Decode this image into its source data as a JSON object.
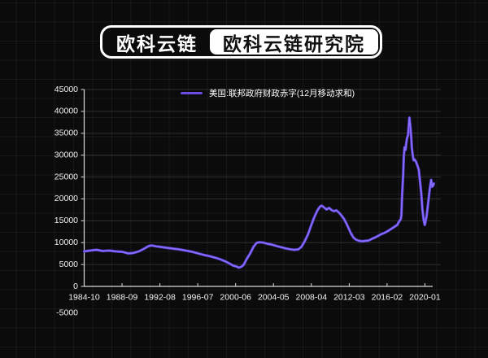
{
  "header": {
    "badge_left": "欧科云链",
    "badge_right": "欧科云链研究院"
  },
  "colors": {
    "background": "#0b0b0b",
    "line": "#6b4be0",
    "line_core": "#8a6eff",
    "line_under": "#5b3fd6",
    "axis": "#d9d9d9",
    "gridline": "#2f2f2f",
    "label": "#f2f2f2",
    "badge_border": "#ffffff"
  },
  "chart_data": {
    "type": "line",
    "title": "",
    "legend": "美国:联邦政府财政赤字(12月移动求和)",
    "legend_position": "top-center",
    "grid": true,
    "ylim": [
      -5000,
      45000
    ],
    "y_ticks": [
      45000,
      40000,
      35000,
      30000,
      25000,
      20000,
      15000,
      10000,
      5000,
      0,
      -5000
    ],
    "x_tick_labels": [
      "1984-10",
      "1988-09",
      "1992-08",
      "1996-07",
      "2000-06",
      "2004-05",
      "2008-04",
      "2012-03",
      "2016-02",
      "2020-01"
    ],
    "series": [
      {
        "name": "美国:联邦政府财政赤字(12月移动求和)",
        "points_pos_value": [
          [
            0.0,
            8000
          ],
          [
            0.016,
            8180
          ],
          [
            0.035,
            8360
          ],
          [
            0.053,
            8090
          ],
          [
            0.072,
            8180
          ],
          [
            0.091,
            7990
          ],
          [
            0.109,
            7900
          ],
          [
            0.126,
            7530
          ],
          [
            0.14,
            7620
          ],
          [
            0.156,
            7990
          ],
          [
            0.172,
            8640
          ],
          [
            0.184,
            9200
          ],
          [
            0.193,
            9350
          ],
          [
            0.205,
            9160
          ],
          [
            0.219,
            9010
          ],
          [
            0.235,
            8830
          ],
          [
            0.253,
            8640
          ],
          [
            0.272,
            8460
          ],
          [
            0.291,
            8180
          ],
          [
            0.309,
            7900
          ],
          [
            0.326,
            7530
          ],
          [
            0.344,
            7160
          ],
          [
            0.36,
            6880
          ],
          [
            0.377,
            6510
          ],
          [
            0.391,
            6140
          ],
          [
            0.405,
            5670
          ],
          [
            0.416,
            5210
          ],
          [
            0.426,
            4740
          ],
          [
            0.435,
            4560
          ],
          [
            0.442,
            4280
          ],
          [
            0.449,
            4460
          ],
          [
            0.456,
            4930
          ],
          [
            0.465,
            6320
          ],
          [
            0.474,
            7430
          ],
          [
            0.484,
            9010
          ],
          [
            0.493,
            9940
          ],
          [
            0.502,
            10090
          ],
          [
            0.512,
            10000
          ],
          [
            0.523,
            9760
          ],
          [
            0.535,
            9570
          ],
          [
            0.547,
            9290
          ],
          [
            0.56,
            9010
          ],
          [
            0.574,
            8730
          ],
          [
            0.588,
            8490
          ],
          [
            0.6,
            8360
          ],
          [
            0.612,
            8460
          ],
          [
            0.621,
            9010
          ],
          [
            0.63,
            10220
          ],
          [
            0.64,
            11900
          ],
          [
            0.649,
            13940
          ],
          [
            0.658,
            15800
          ],
          [
            0.667,
            17380
          ],
          [
            0.674,
            18210
          ],
          [
            0.679,
            18460
          ],
          [
            0.686,
            18030
          ],
          [
            0.693,
            17570
          ],
          [
            0.7,
            17940
          ],
          [
            0.707,
            17470
          ],
          [
            0.714,
            17190
          ],
          [
            0.721,
            17380
          ],
          [
            0.728,
            16910
          ],
          [
            0.735,
            16260
          ],
          [
            0.742,
            15520
          ],
          [
            0.749,
            14500
          ],
          [
            0.756,
            13290
          ],
          [
            0.763,
            12080
          ],
          [
            0.77,
            11150
          ],
          [
            0.777,
            10690
          ],
          [
            0.786,
            10410
          ],
          [
            0.795,
            10320
          ],
          [
            0.805,
            10410
          ],
          [
            0.814,
            10500
          ],
          [
            0.823,
            10870
          ],
          [
            0.833,
            11240
          ],
          [
            0.842,
            11620
          ],
          [
            0.851,
            11990
          ],
          [
            0.86,
            12270
          ],
          [
            0.87,
            12730
          ],
          [
            0.879,
            13200
          ],
          [
            0.888,
            13660
          ],
          [
            0.895,
            14040
          ],
          [
            0.9,
            14780
          ],
          [
            0.905,
            15340
          ],
          [
            0.907,
            16170
          ],
          [
            0.909,
            20820
          ],
          [
            0.912,
            25470
          ],
          [
            0.914,
            29740
          ],
          [
            0.916,
            31790
          ],
          [
            0.919,
            31230
          ],
          [
            0.921,
            32720
          ],
          [
            0.923,
            33830
          ],
          [
            0.926,
            34570
          ],
          [
            0.928,
            36620
          ],
          [
            0.93,
            38570
          ],
          [
            0.933,
            36250
          ],
          [
            0.935,
            34110
          ],
          [
            0.937,
            31600
          ],
          [
            0.94,
            29740
          ],
          [
            0.942,
            28810
          ],
          [
            0.945,
            29000
          ],
          [
            0.949,
            28440
          ],
          [
            0.953,
            27600
          ],
          [
            0.957,
            26580
          ],
          [
            0.96,
            24170
          ],
          [
            0.964,
            21190
          ],
          [
            0.967,
            17660
          ],
          [
            0.971,
            15060
          ],
          [
            0.974,
            14040
          ],
          [
            0.979,
            15990
          ],
          [
            0.984,
            19330
          ],
          [
            0.988,
            22120
          ],
          [
            0.992,
            24350
          ],
          [
            0.995,
            22770
          ],
          [
            0.998,
            23050
          ],
          [
            1.0,
            23510
          ]
        ]
      }
    ]
  }
}
